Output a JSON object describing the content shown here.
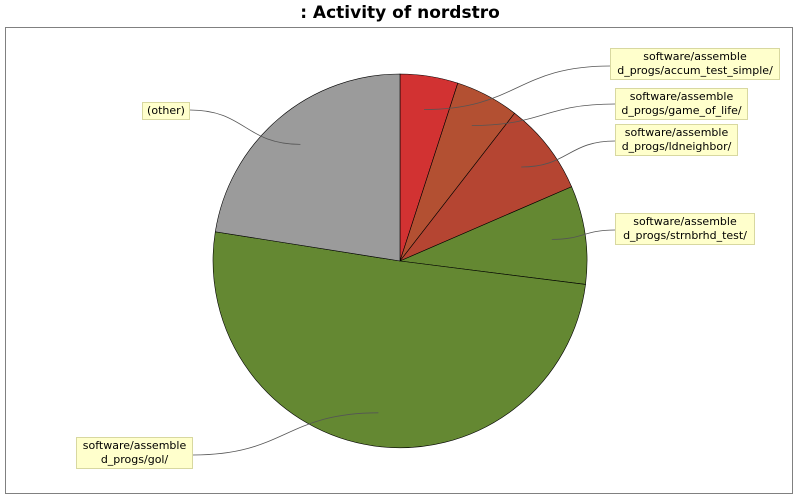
{
  "chart_data": {
    "type": "pie",
    "title": ": Activity of nordstro",
    "slices": [
      {
        "label": "software/assembled_progs/accum_test_simple/",
        "label_lines": [
          "software/assemble",
          "d_progs/accum_test_simple/"
        ],
        "value": 5.0,
        "color": "#d23232"
      },
      {
        "label": "software/assembled_progs/game_of_life/",
        "label_lines": [
          "software/assemble",
          "d_progs/game_of_life/"
        ],
        "value": 5.5,
        "color": "#b35032"
      },
      {
        "label": "software/assembled_progs/ldneighbor/",
        "label_lines": [
          "software/assemble",
          "d_progs/ldneighbor/"
        ],
        "value": 8.0,
        "color": "#b54532"
      },
      {
        "label": "software/assembled_progs/strnbrhd_test/",
        "label_lines": [
          "software/assemble",
          "d_progs/strnbrhd_test/"
        ],
        "value": 8.5,
        "color": "#648832"
      },
      {
        "label": "software/assembled_progs/gol/",
        "label_lines": [
          "software/assemble",
          "d_progs/gol/"
        ],
        "value": 50.5,
        "color": "#648832"
      },
      {
        "label": "(other)",
        "label_lines": [
          "(other)"
        ],
        "value": 22.5,
        "color": "#9b9b9b"
      }
    ]
  }
}
